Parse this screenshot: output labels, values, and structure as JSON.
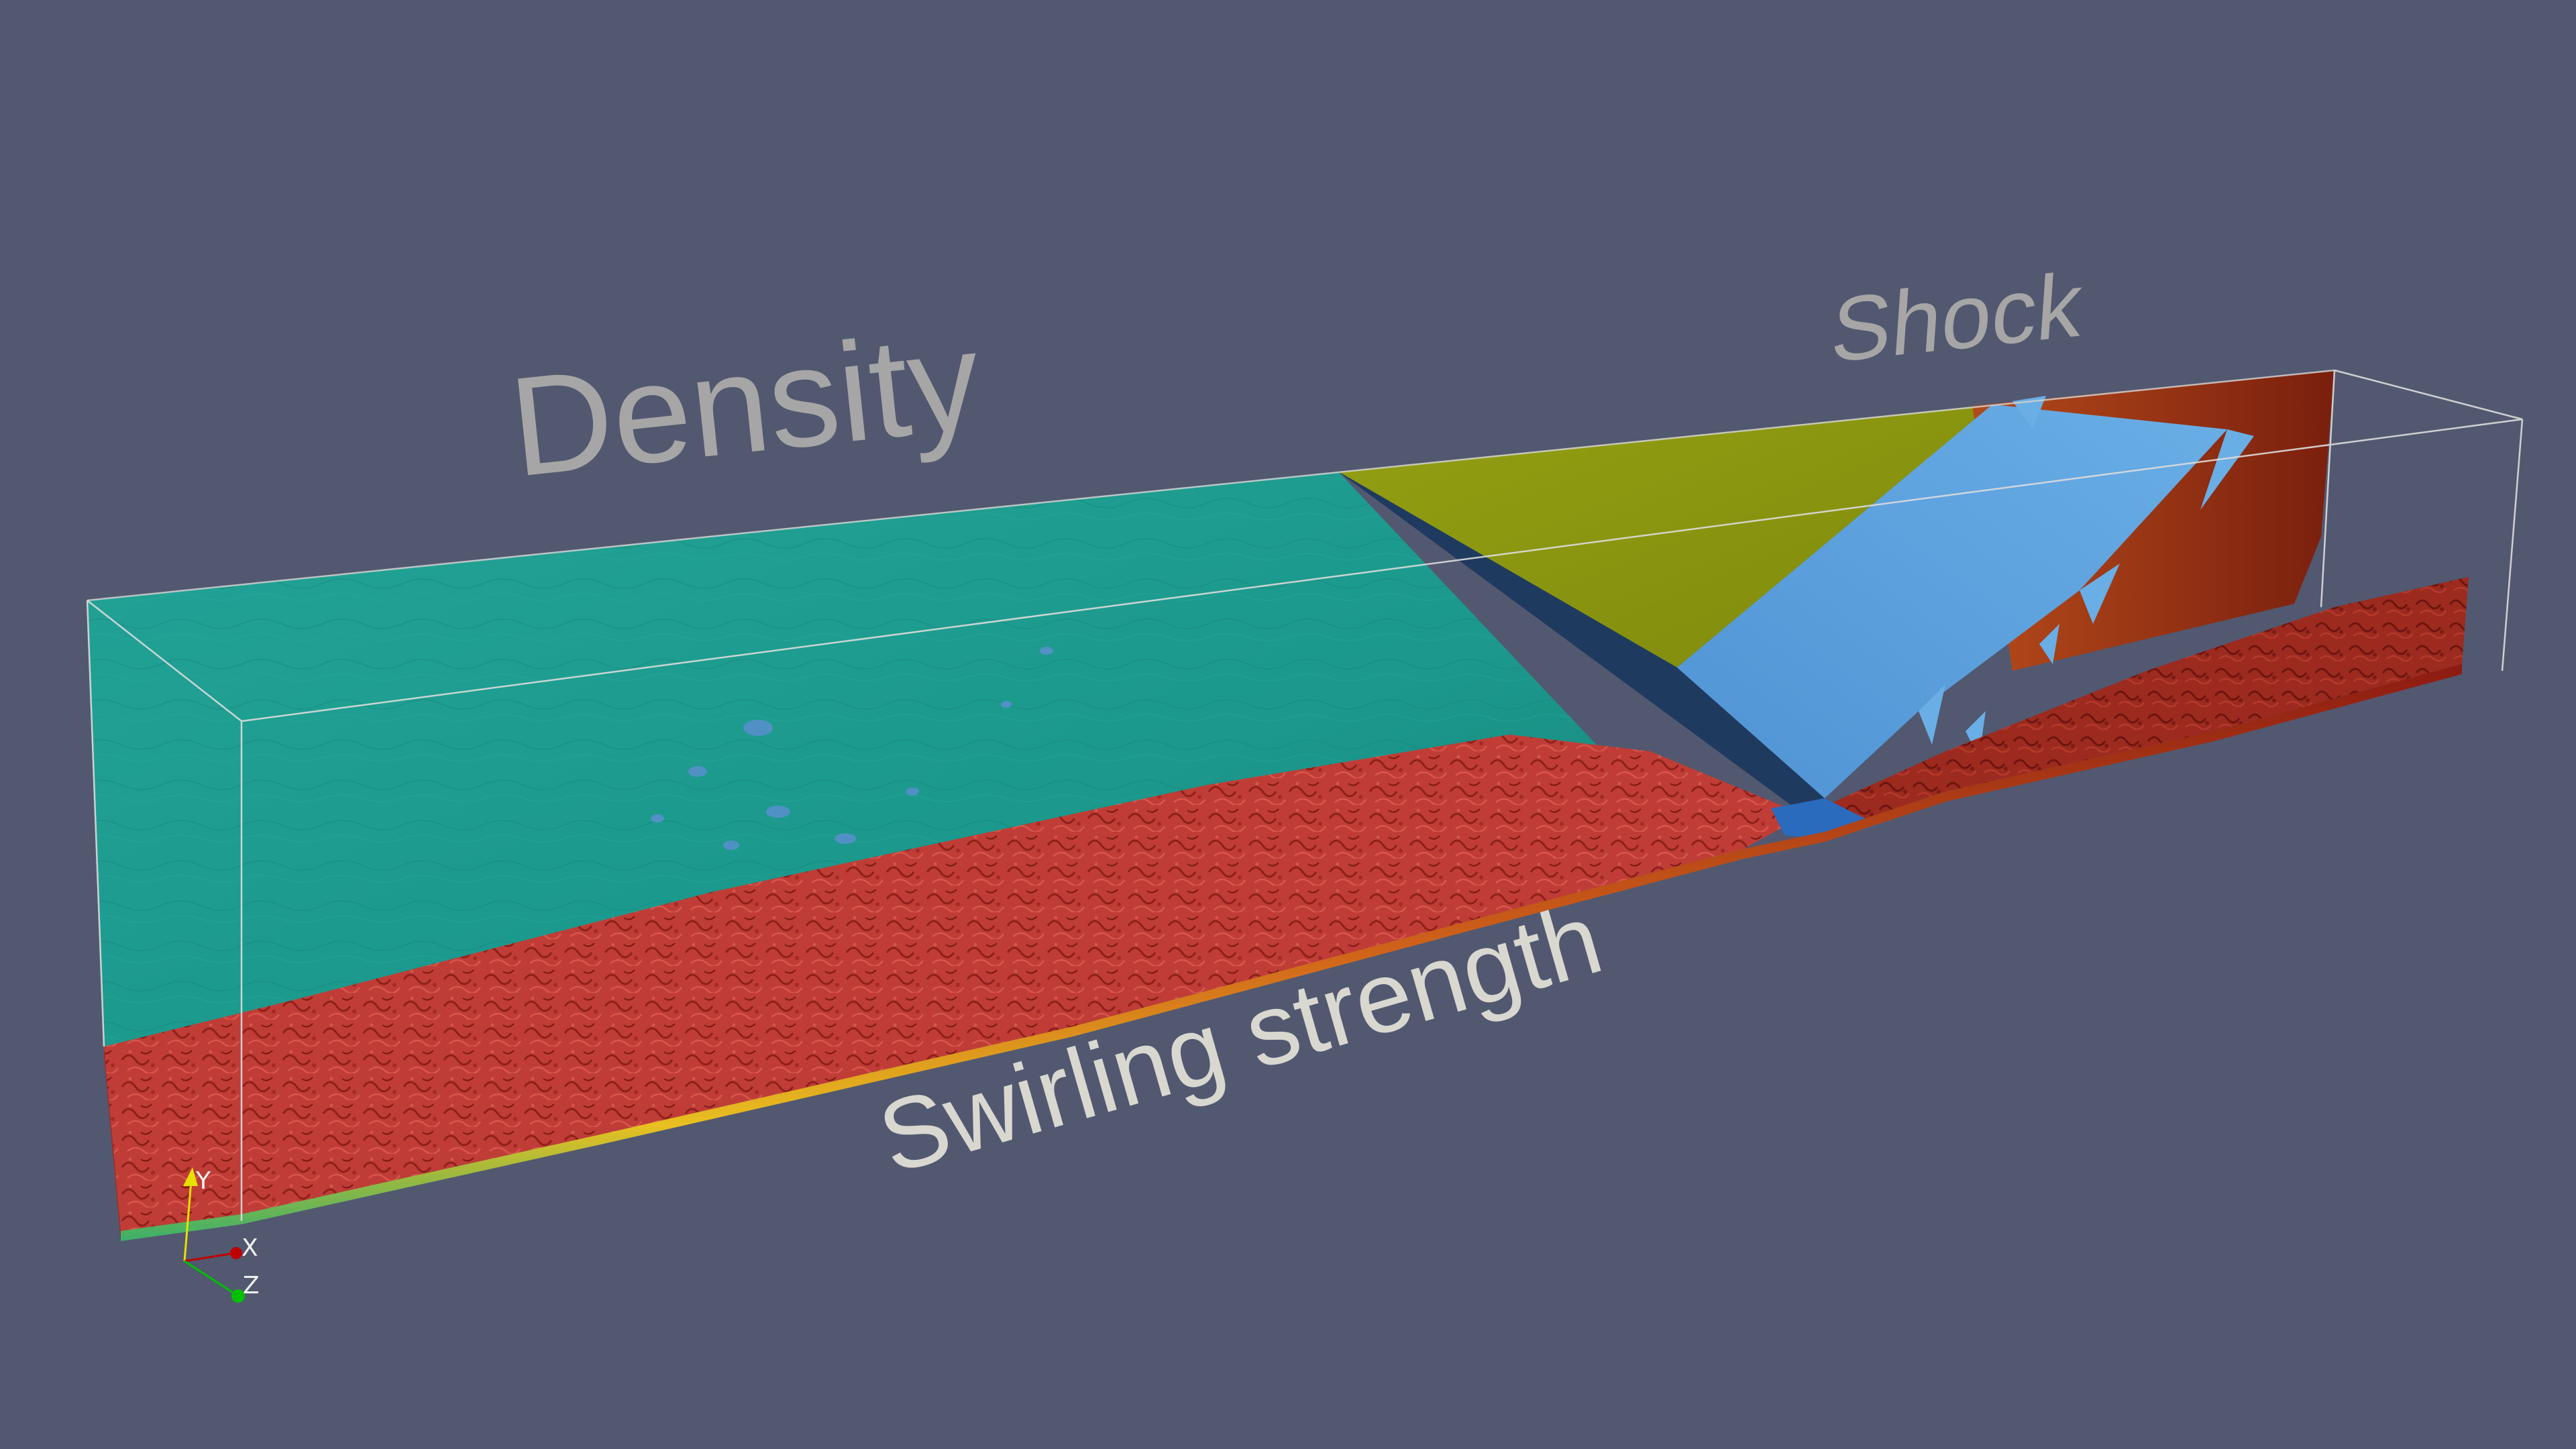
{
  "labels": {
    "density": "Density",
    "shock": "Shock",
    "swirling": "Swirling strength"
  },
  "axes": {
    "y": "Y",
    "x": "X",
    "z": "Z"
  },
  "colors": {
    "background": "#525870",
    "density_teal": "#1f9a8f",
    "density_olive": "#8e9a10",
    "shock_surface": "#5a9edc",
    "shock_shadow": "#1f3a5f",
    "vortex_red": "#c2403a",
    "vortex_dark_red": "#8c1a12",
    "label_gray": "#a6a6a6",
    "label_light": "#d8d8d0",
    "axis_y": "#e8e000",
    "axis_x": "#c00000",
    "axis_z": "#00c000"
  },
  "icons": {
    "orientation_axes": "orientation-triad-icon"
  }
}
